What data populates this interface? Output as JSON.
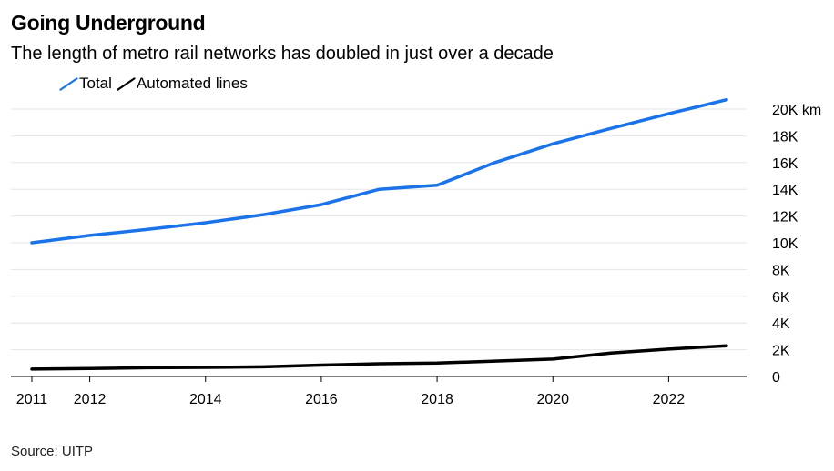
{
  "title": "Going Underground",
  "subtitle": "The length of metro rail networks has doubled in just over a decade",
  "source": "Source: UITP",
  "chart_data": {
    "type": "line",
    "title": "Going Underground",
    "subtitle": "The length of metro rail networks has doubled in just over a decade",
    "xlabel": "",
    "ylabel": "",
    "x": [
      2011,
      2012,
      2013,
      2014,
      2015,
      2016,
      2017,
      2018,
      2019,
      2020,
      2021,
      2022,
      2023
    ],
    "xlim": [
      2011,
      2023
    ],
    "ylim": [
      0,
      20000
    ],
    "x_ticks": [
      2011,
      2012,
      2014,
      2016,
      2018,
      2020,
      2022
    ],
    "x_tick_labels": [
      "2011",
      "2012",
      "2014",
      "2016",
      "2018",
      "2020",
      "2022"
    ],
    "y_ticks": [
      0,
      2000,
      4000,
      6000,
      8000,
      10000,
      12000,
      14000,
      16000,
      18000,
      20000
    ],
    "y_tick_labels": [
      "0",
      "2K",
      "4K",
      "6K",
      "8K",
      "10K",
      "12K",
      "14K",
      "16K",
      "18K",
      "20K km"
    ],
    "grid": true,
    "legend_position": "top-left",
    "series": [
      {
        "name": "Total",
        "color": "#1a73e8",
        "values": [
          10000,
          10550,
          11000,
          11500,
          12100,
          12850,
          14000,
          14300,
          16000,
          17400,
          18550,
          19650,
          20700
        ]
      },
      {
        "name": "Automated lines",
        "color": "#000000",
        "values": [
          550,
          600,
          650,
          680,
          720,
          850,
          950,
          1000,
          1150,
          1300,
          1750,
          2050,
          2300
        ]
      }
    ]
  }
}
